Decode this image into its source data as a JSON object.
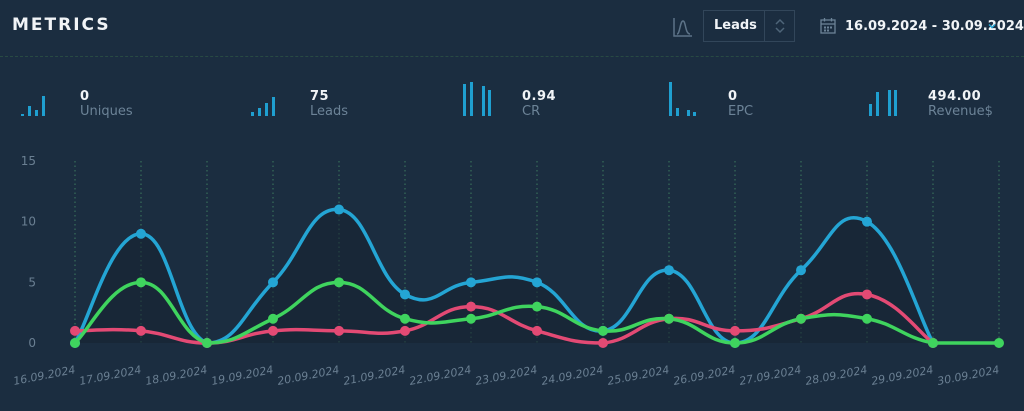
{
  "header": {
    "title": "METRICS",
    "chart_type_icon": "line-chart-icon",
    "select": {
      "value": "Leads",
      "icon": "up-down-arrows-icon"
    },
    "date_range": {
      "value": "16.09.2024 - 30.09.2024",
      "icon": "calendar-icon"
    }
  },
  "metrics": [
    {
      "value": "0",
      "label": "Uniques",
      "icon": "bar-chart-icon"
    },
    {
      "value": "75",
      "label": "Leads",
      "icon": "bar-chart-icon"
    },
    {
      "value": "0.94",
      "label": "CR",
      "icon": "bar-chart-icon"
    },
    {
      "value": "0",
      "label": "EPC",
      "icon": "bar-chart-icon"
    },
    {
      "value": "494.00",
      "label": "Revenue$",
      "icon": "bar-chart-icon"
    }
  ],
  "colors": {
    "background": "#1b2d40",
    "blue": "#24a5d4",
    "green": "#3fd45e",
    "red": "#e34a74",
    "grid": "#3c7a5e",
    "text": "#f1f4f7",
    "muted": "#6c8397"
  },
  "chart_data": {
    "type": "line",
    "x": [
      "16.09.2024",
      "17.09.2024",
      "18.09.2024",
      "19.09.2024",
      "20.09.2024",
      "21.09.2024",
      "22.09.2024",
      "23.09.2024",
      "24.09.2024",
      "25.09.2024",
      "26.09.2024",
      "27.09.2024",
      "28.09.2024",
      "29.09.2024",
      "30.09.2024"
    ],
    "yticks": [
      0,
      5,
      10,
      15
    ],
    "ylim": [
      0,
      15
    ],
    "grid": "vertical dotted",
    "series": [
      {
        "color": "#24a5d4",
        "values": [
          0,
          9,
          0,
          5,
          11,
          4,
          5,
          5,
          1,
          6,
          0,
          6,
          10,
          0,
          null
        ]
      },
      {
        "color": "#e34a74",
        "values": [
          1,
          1,
          0,
          1,
          1,
          1,
          3,
          1,
          0,
          2,
          1,
          2,
          4,
          0,
          null
        ]
      },
      {
        "color": "#3fd45e",
        "values": [
          0,
          5,
          0,
          2,
          5,
          2,
          2,
          3,
          1,
          2,
          0,
          2,
          2,
          0,
          0
        ]
      }
    ]
  }
}
